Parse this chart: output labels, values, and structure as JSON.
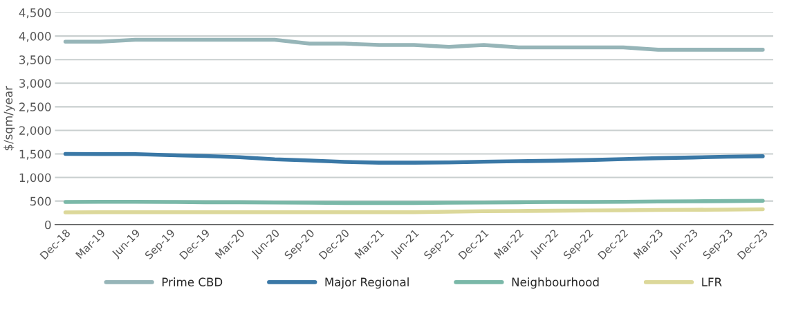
{
  "chart_data": {
    "type": "line",
    "ylabel": "$/sqm/year",
    "categories": [
      "Dec-18",
      "Mar-19",
      "Jun-19",
      "Sep-19",
      "Dec-19",
      "Mar-20",
      "Jun-20",
      "Sep-20",
      "Dec-20",
      "Mar-21",
      "Jun-21",
      "Sep-21",
      "Dec-21",
      "Mar-22",
      "Jun-22",
      "Sep-22",
      "Dec-22",
      "Mar-23",
      "Jun-23",
      "Sep-23",
      "Dec-23"
    ],
    "series": [
      {
        "name": "Prime CBD",
        "color": "#96b5b8",
        "values": [
          3880,
          3880,
          3920,
          3920,
          3920,
          3920,
          3920,
          3840,
          3840,
          3810,
          3810,
          3770,
          3810,
          3760,
          3760,
          3760,
          3760,
          3710,
          3710,
          3710,
          3710
        ]
      },
      {
        "name": "Major Regional",
        "color": "#3a78a6",
        "values": [
          1500,
          1495,
          1495,
          1475,
          1455,
          1430,
          1385,
          1360,
          1330,
          1315,
          1315,
          1320,
          1335,
          1345,
          1355,
          1370,
          1390,
          1410,
          1425,
          1440,
          1450
        ]
      },
      {
        "name": "Neighbourhood",
        "color": "#7ab8a8",
        "values": [
          480,
          485,
          485,
          480,
          475,
          475,
          470,
          465,
          460,
          460,
          460,
          465,
          470,
          475,
          480,
          480,
          485,
          490,
          495,
          500,
          505
        ]
      },
      {
        "name": "LFR",
        "color": "#dcd89a",
        "values": [
          260,
          265,
          265,
          265,
          265,
          265,
          265,
          265,
          265,
          265,
          265,
          275,
          285,
          290,
          295,
          300,
          305,
          310,
          315,
          320,
          325
        ]
      }
    ],
    "ylim": [
      0,
      4500
    ],
    "yticks": [
      {
        "value": 0,
        "label": "0"
      },
      {
        "value": 500,
        "label": "500"
      },
      {
        "value": 1000,
        "label": "1,000"
      },
      {
        "value": 1500,
        "label": "1,500"
      },
      {
        "value": 2000,
        "label": "2,000"
      },
      {
        "value": 2500,
        "label": "2,500"
      },
      {
        "value": 3000,
        "label": "3,000"
      },
      {
        "value": 3500,
        "label": "3,500"
      },
      {
        "value": 4000,
        "label": "4,000"
      },
      {
        "value": 4500,
        "label": "4,500"
      }
    ],
    "grid": "y",
    "legend": "bottom",
    "line_style": "solid",
    "marker": "none"
  }
}
